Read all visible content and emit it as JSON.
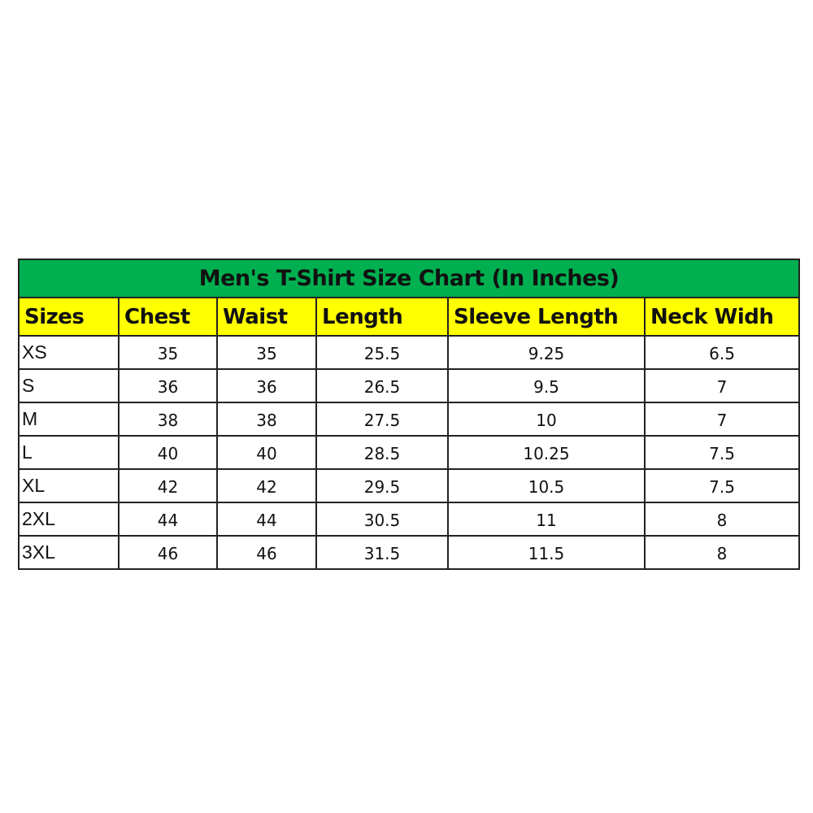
{
  "title": "Men's T-Shirt Size Chart (In Inches)",
  "colors": {
    "title_bg": "#00b050",
    "header_bg": "#ffff00"
  },
  "headers": [
    "Sizes",
    "Chest",
    "Waist",
    "Length",
    "Sleeve Length",
    "Neck Widh"
  ],
  "rows": [
    [
      "XS",
      "35",
      "35",
      "25.5",
      "9.25",
      "6.5"
    ],
    [
      "S",
      "36",
      "36",
      "26.5",
      "9.5",
      "7"
    ],
    [
      "M",
      "38",
      "38",
      "27.5",
      "10",
      "7"
    ],
    [
      "L",
      "40",
      "40",
      "28.5",
      "10.25",
      "7.5"
    ],
    [
      "XL",
      "42",
      "42",
      "29.5",
      "10.5",
      "7.5"
    ],
    [
      "2XL",
      "44",
      "44",
      "30.5",
      "11",
      "8"
    ],
    [
      "3XL",
      "46",
      "46",
      "31.5",
      "11.5",
      "8"
    ]
  ]
}
